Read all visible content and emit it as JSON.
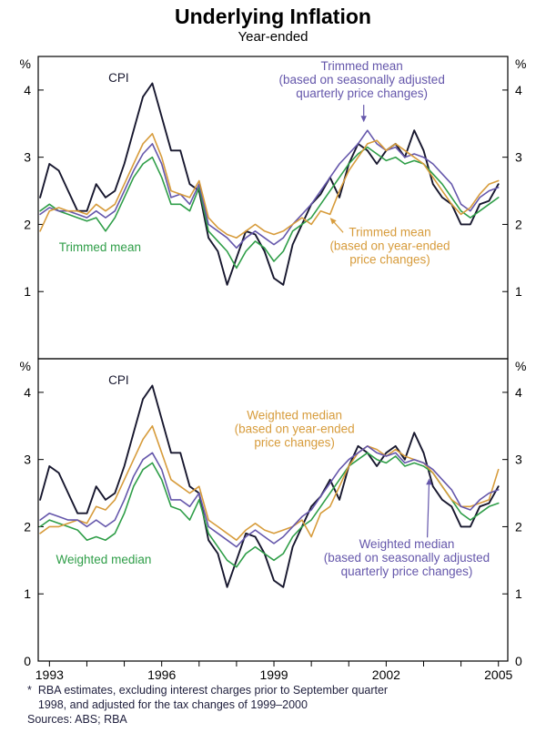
{
  "page": {
    "title": "Underlying Inflation",
    "subtitle": "Year-ended"
  },
  "footnote": {
    "marker": "*",
    "line1": "RBA estimates, excluding interest charges prior to September quarter",
    "line2": "1998, and adjusted for the tax changes of 1999–2000",
    "sources": "Sources: ABS; RBA"
  },
  "palette": {
    "cpi": "#17172e",
    "green": "#2f9e48",
    "orange": "#d79c3c",
    "purple": "#6557ab",
    "axis": "#000000"
  },
  "chart_data": [
    {
      "type": "line",
      "panel": "top",
      "y_unit": "%",
      "x_range": [
        1992.7,
        2005.25
      ],
      "y_range": [
        0,
        4.5
      ],
      "y_ticks": [
        1,
        2,
        3,
        4
      ],
      "zero_label": false,
      "x_ticks": [
        1993,
        1994,
        1995,
        1996,
        1997,
        1998,
        1999,
        2000,
        2001,
        2002,
        2003,
        2004,
        2005
      ],
      "x_tick_labels": [
        1993,
        1996,
        1999,
        2002,
        2005
      ],
      "x": [
        1992.75,
        1993.0,
        1993.25,
        1993.5,
        1993.75,
        1994.0,
        1994.25,
        1994.5,
        1994.75,
        1995.0,
        1995.25,
        1995.5,
        1995.75,
        1996.0,
        1996.25,
        1996.5,
        1996.75,
        1997.0,
        1997.25,
        1997.5,
        1997.75,
        1998.0,
        1998.25,
        1998.5,
        1998.75,
        1999.0,
        1999.25,
        1999.5,
        1999.75,
        2000.0,
        2000.25,
        2000.5,
        2000.75,
        2001.0,
        2001.25,
        2001.5,
        2001.75,
        2002.0,
        2002.25,
        2002.5,
        2002.75,
        2003.0,
        2003.25,
        2003.5,
        2003.75,
        2004.0,
        2004.25,
        2004.5,
        2004.75,
        2005.0
      ],
      "series": [
        {
          "name": "CPI",
          "color_key": "cpi",
          "width": 1.9,
          "values": [
            2.4,
            2.9,
            2.8,
            2.5,
            2.2,
            2.2,
            2.6,
            2.4,
            2.5,
            2.9,
            3.4,
            3.9,
            4.1,
            3.6,
            3.1,
            3.1,
            2.6,
            2.5,
            1.8,
            1.6,
            1.1,
            1.5,
            1.9,
            1.85,
            1.6,
            1.2,
            1.1,
            1.7,
            2.0,
            2.3,
            2.45,
            2.7,
            2.4,
            2.9,
            3.2,
            3.1,
            2.9,
            3.1,
            3.2,
            3.0,
            3.4,
            3.1,
            2.6,
            2.4,
            2.3,
            2.0,
            2.0,
            2.3,
            2.35,
            2.6
          ]
        },
        {
          "name": "Trimmed mean",
          "color_key": "green",
          "width": 1.6,
          "values": [
            2.2,
            2.3,
            2.2,
            2.15,
            2.1,
            2.05,
            2.1,
            1.9,
            2.1,
            2.4,
            2.7,
            2.9,
            3.0,
            2.7,
            2.3,
            2.3,
            2.2,
            2.55,
            1.9,
            1.75,
            1.6,
            1.35,
            1.6,
            1.75,
            1.65,
            1.45,
            1.6,
            1.9,
            2.0,
            2.1,
            2.3,
            2.5,
            2.7,
            2.9,
            3.05,
            3.15,
            3.05,
            2.95,
            3.0,
            2.9,
            2.95,
            2.9,
            2.75,
            2.6,
            2.4,
            2.2,
            2.1,
            2.2,
            2.3,
            2.4
          ]
        },
        {
          "name": "Trimmed mean (seasonally adjusted quarterly)",
          "color_key": "purple",
          "width": 1.6,
          "values": [
            2.15,
            2.25,
            2.2,
            2.2,
            2.15,
            2.1,
            2.2,
            2.1,
            2.2,
            2.5,
            2.8,
            3.05,
            3.2,
            2.9,
            2.4,
            2.45,
            2.3,
            2.6,
            2.0,
            1.9,
            1.8,
            1.65,
            1.8,
            1.9,
            1.8,
            1.7,
            1.8,
            2.0,
            2.15,
            2.3,
            2.5,
            2.7,
            2.9,
            3.05,
            3.2,
            3.4,
            3.2,
            3.1,
            3.15,
            3.0,
            3.05,
            3.0,
            2.9,
            2.75,
            2.6,
            2.3,
            2.2,
            2.4,
            2.5,
            2.55
          ]
        },
        {
          "name": "Trimmed mean (year-ended)",
          "color_key": "orange",
          "width": 1.6,
          "values": [
            1.9,
            2.2,
            2.25,
            2.2,
            2.2,
            2.15,
            2.3,
            2.2,
            2.3,
            2.6,
            2.9,
            3.2,
            3.35,
            3.0,
            2.5,
            2.45,
            2.4,
            2.65,
            2.1,
            1.95,
            1.85,
            1.8,
            1.9,
            2.0,
            1.9,
            1.85,
            1.9,
            2.0,
            2.1,
            2.0,
            2.2,
            2.15,
            2.5,
            2.8,
            3.0,
            3.2,
            3.25,
            3.1,
            3.2,
            3.1,
            3.0,
            2.9,
            2.7,
            2.5,
            2.3,
            2.15,
            2.25,
            2.45,
            2.6,
            2.65
          ]
        }
      ],
      "annotations": [
        {
          "lines": [
            "CPI"
          ],
          "color_key": "cpi",
          "x": 1994.85,
          "y": 4.12
        },
        {
          "lines": [
            "Trimmed mean"
          ],
          "color_key": "green",
          "x": 1994.35,
          "y": 1.6
        },
        {
          "lines": [
            "Trimmed mean",
            "(based on seasonally adjusted",
            "quarterly price changes)"
          ],
          "color_key": "purple",
          "x": 2001.35,
          "y": 4.3,
          "arrow": {
            "from": [
              2001.4,
              3.78
            ],
            "to": [
              2001.4,
              3.52
            ]
          }
        },
        {
          "lines": [
            "Trimmed mean",
            "(based on year-ended",
            "price changes)"
          ],
          "color_key": "orange",
          "x": 2002.1,
          "y": 1.82,
          "arrow": {
            "from": [
              2000.85,
              1.88
            ],
            "to": [
              2000.5,
              2.1
            ]
          }
        }
      ]
    },
    {
      "type": "line",
      "panel": "bottom",
      "y_unit": "%",
      "x_range": [
        1992.7,
        2005.25
      ],
      "y_range": [
        0,
        4.5
      ],
      "y_ticks": [
        1,
        2,
        3,
        4
      ],
      "zero_label": true,
      "x_ticks": [
        1993,
        1994,
        1995,
        1996,
        1997,
        1998,
        1999,
        2000,
        2001,
        2002,
        2003,
        2004,
        2005
      ],
      "x_tick_labels": [
        1993,
        1996,
        1999,
        2002,
        2005
      ],
      "x": [
        1992.75,
        1993.0,
        1993.25,
        1993.5,
        1993.75,
        1994.0,
        1994.25,
        1994.5,
        1994.75,
        1995.0,
        1995.25,
        1995.5,
        1995.75,
        1996.0,
        1996.25,
        1996.5,
        1996.75,
        1997.0,
        1997.25,
        1997.5,
        1997.75,
        1998.0,
        1998.25,
        1998.5,
        1998.75,
        1999.0,
        1999.25,
        1999.5,
        1999.75,
        2000.0,
        2000.25,
        2000.5,
        2000.75,
        2001.0,
        2001.25,
        2001.5,
        2001.75,
        2002.0,
        2002.25,
        2002.5,
        2002.75,
        2003.0,
        2003.25,
        2003.5,
        2003.75,
        2004.0,
        2004.25,
        2004.5,
        2004.75,
        2005.0
      ],
      "series": [
        {
          "name": "CPI",
          "color_key": "cpi",
          "width": 1.9,
          "values": [
            2.4,
            2.9,
            2.8,
            2.5,
            2.2,
            2.2,
            2.6,
            2.4,
            2.5,
            2.9,
            3.4,
            3.9,
            4.1,
            3.6,
            3.1,
            3.1,
            2.6,
            2.5,
            1.8,
            1.6,
            1.1,
            1.5,
            1.9,
            1.85,
            1.6,
            1.2,
            1.1,
            1.7,
            2.0,
            2.3,
            2.45,
            2.7,
            2.4,
            2.9,
            3.2,
            3.1,
            2.9,
            3.1,
            3.2,
            3.0,
            3.4,
            3.1,
            2.6,
            2.4,
            2.3,
            2.0,
            2.0,
            2.3,
            2.35,
            2.6
          ]
        },
        {
          "name": "Weighted median",
          "color_key": "green",
          "width": 1.6,
          "values": [
            2.0,
            2.1,
            2.05,
            2.0,
            1.95,
            1.8,
            1.85,
            1.8,
            1.9,
            2.2,
            2.6,
            2.85,
            2.95,
            2.7,
            2.3,
            2.25,
            2.1,
            2.4,
            1.9,
            1.7,
            1.5,
            1.4,
            1.6,
            1.7,
            1.6,
            1.5,
            1.6,
            1.85,
            2.0,
            2.1,
            2.3,
            2.5,
            2.7,
            2.9,
            3.0,
            3.1,
            3.0,
            2.95,
            3.05,
            2.9,
            2.95,
            2.9,
            2.8,
            2.6,
            2.4,
            2.2,
            2.1,
            2.2,
            2.3,
            2.35
          ]
        },
        {
          "name": "Weighted median (year-ended)",
          "color_key": "orange",
          "width": 1.6,
          "values": [
            1.9,
            2.0,
            2.0,
            2.05,
            2.1,
            2.05,
            2.3,
            2.25,
            2.4,
            2.7,
            3.0,
            3.3,
            3.5,
            3.1,
            2.7,
            2.6,
            2.5,
            2.6,
            2.1,
            2.0,
            1.9,
            1.8,
            1.95,
            2.05,
            1.95,
            1.9,
            1.95,
            2.0,
            2.1,
            1.85,
            2.2,
            2.3,
            2.6,
            2.9,
            3.1,
            3.2,
            3.15,
            3.05,
            3.15,
            3.05,
            3.0,
            2.95,
            2.8,
            2.6,
            2.4,
            2.3,
            2.3,
            2.35,
            2.4,
            2.85
          ]
        },
        {
          "name": "Weighted median (seasonally adjusted quarterly)",
          "color_key": "purple",
          "width": 1.6,
          "values": [
            2.1,
            2.2,
            2.15,
            2.1,
            2.1,
            2.0,
            2.1,
            2.0,
            2.1,
            2.4,
            2.75,
            3.0,
            3.1,
            2.85,
            2.4,
            2.4,
            2.3,
            2.5,
            2.0,
            1.9,
            1.8,
            1.7,
            1.85,
            1.95,
            1.85,
            1.75,
            1.85,
            2.0,
            2.15,
            2.25,
            2.45,
            2.65,
            2.85,
            3.0,
            3.1,
            3.2,
            3.1,
            3.05,
            3.1,
            2.95,
            3.0,
            2.95,
            2.85,
            2.7,
            2.55,
            2.3,
            2.25,
            2.4,
            2.5,
            2.55
          ]
        }
      ],
      "annotations": [
        {
          "lines": [
            "CPI"
          ],
          "color_key": "cpi",
          "x": 1994.85,
          "y": 4.12
        },
        {
          "lines": [
            "Weighted median",
            "(based on year-ended",
            "price changes)"
          ],
          "color_key": "orange",
          "x": 1999.55,
          "y": 3.6
        },
        {
          "lines": [
            "Weighted median"
          ],
          "color_key": "green",
          "x": 1994.45,
          "y": 1.45
        },
        {
          "lines": [
            "Weighted median",
            "(based on seasonally adjusted",
            "quarterly price changes)"
          ],
          "color_key": "purple",
          "x": 2002.55,
          "y": 1.68,
          "arrow": {
            "from": [
              2003.1,
              1.84
            ],
            "to": [
              2003.15,
              2.72
            ]
          }
        }
      ]
    }
  ]
}
